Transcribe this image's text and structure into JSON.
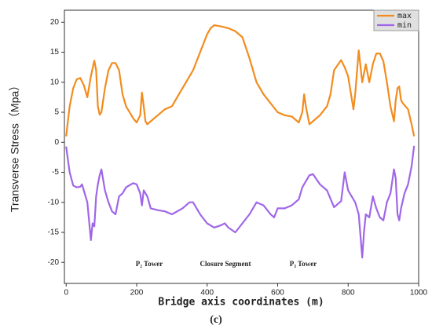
{
  "chart_data": {
    "type": "line",
    "y_label": "Transverse Stress（Mpa）",
    "x_label": "Bridge axis coordinates (m)",
    "caption": "(c)",
    "annotations": [
      "P₂ Tower",
      "Closure Segment",
      "P₃ Tower"
    ],
    "xlim": [
      -5,
      1000
    ],
    "xticks": [
      0,
      200,
      400,
      600,
      800,
      1000
    ],
    "ylim": [
      -23.5,
      22
    ],
    "yticks": [
      -20,
      -15,
      -10,
      -5,
      0,
      5,
      10,
      15,
      20
    ],
    "legend": "top-right",
    "series": [
      {
        "name": "max",
        "color": "#f28c1e",
        "x": [
          0,
          10,
          20,
          30,
          40,
          50,
          60,
          70,
          80,
          85,
          90,
          95,
          100,
          110,
          120,
          130,
          140,
          150,
          160,
          170,
          180,
          190,
          200,
          210,
          215,
          220,
          225,
          230,
          240,
          260,
          280,
          300,
          320,
          340,
          360,
          380,
          400,
          410,
          420,
          440,
          460,
          480,
          500,
          520,
          540,
          560,
          580,
          600,
          620,
          640,
          660,
          670,
          675,
          680,
          690,
          700,
          720,
          740,
          750,
          760,
          780,
          790,
          800,
          815,
          820,
          830,
          840,
          850,
          860,
          870,
          880,
          890,
          900,
          910,
          920,
          930,
          935,
          940,
          945,
          950,
          955,
          970,
          980,
          987
        ],
        "values": [
          1,
          6,
          9,
          10.5,
          10.7,
          9.5,
          7.5,
          11,
          13.6,
          12,
          6,
          4.6,
          5,
          9,
          12,
          13.2,
          13.2,
          12,
          8,
          6,
          5,
          4,
          3.3,
          4.5,
          8.3,
          6,
          3.5,
          3,
          3.5,
          4.5,
          5.5,
          6,
          8,
          10,
          12,
          15,
          18,
          19,
          19.5,
          19.3,
          19,
          18.5,
          17.5,
          14,
          10,
          8,
          6.5,
          5,
          4.5,
          4.3,
          3.3,
          5,
          8,
          6,
          3,
          3.5,
          4.5,
          6,
          8,
          12,
          13.7,
          12.5,
          11,
          5.5,
          8,
          15.3,
          10,
          13,
          10,
          13,
          14.8,
          14.8,
          13.5,
          10,
          6,
          3.5,
          7,
          9,
          9.3,
          7,
          6.5,
          5.5,
          3,
          1
        ]
      },
      {
        "name": "min",
        "color": "#a066e8",
        "x": [
          0,
          10,
          20,
          30,
          40,
          45,
          50,
          60,
          70,
          75,
          80,
          85,
          90,
          95,
          100,
          110,
          120,
          130,
          140,
          150,
          160,
          170,
          190,
          200,
          210,
          215,
          220,
          230,
          240,
          260,
          280,
          300,
          330,
          350,
          360,
          380,
          400,
          420,
          440,
          450,
          460,
          480,
          500,
          520,
          540,
          560,
          580,
          590,
          600,
          620,
          640,
          660,
          670,
          690,
          700,
          720,
          740,
          760,
          780,
          790,
          800,
          820,
          830,
          840,
          845,
          850,
          860,
          870,
          880,
          890,
          900,
          910,
          920,
          930,
          935,
          940,
          945,
          950,
          960,
          970,
          980,
          987
        ],
        "values": [
          -0.7,
          -5,
          -7.2,
          -7.5,
          -7.4,
          -7,
          -8,
          -10,
          -16.3,
          -13.5,
          -14,
          -9,
          -7,
          -5.5,
          -4.5,
          -8,
          -10,
          -11.5,
          -12,
          -9,
          -8.5,
          -7.5,
          -6.8,
          -7,
          -8.5,
          -10.5,
          -8,
          -9,
          -11,
          -11.3,
          -11.5,
          -12,
          -11,
          -10,
          -10,
          -12,
          -13.5,
          -14.2,
          -13.8,
          -13.5,
          -14.2,
          -15,
          -13.5,
          -12,
          -10,
          -10.5,
          -12,
          -12.5,
          -11,
          -11,
          -10.5,
          -9.5,
          -7.5,
          -5.5,
          -5.3,
          -7,
          -8,
          -10.8,
          -9.8,
          -5,
          -8,
          -10,
          -12,
          -19.2,
          -15,
          -12,
          -12.5,
          -9,
          -11,
          -12.5,
          -13,
          -10,
          -8.5,
          -4.5,
          -6,
          -12,
          -13,
          -11,
          -8.5,
          -7,
          -4,
          -0.6
        ]
      }
    ]
  }
}
